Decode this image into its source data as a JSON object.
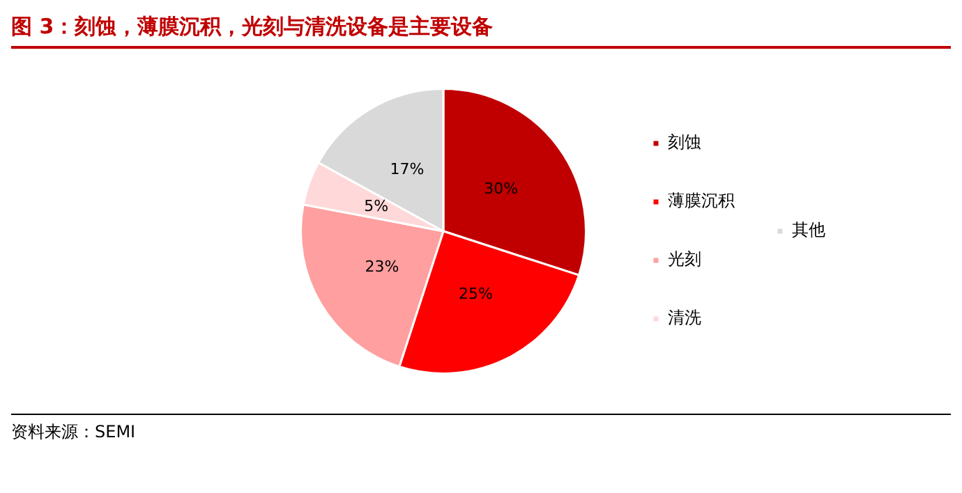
{
  "chart_data": {
    "type": "pie",
    "title": "图 3：刻蚀，薄膜沉积，光刻与清洗设备是主要设备",
    "categories": [
      "刻蚀",
      "薄膜沉积",
      "光刻",
      "清洗",
      "其他"
    ],
    "values": [
      30,
      25,
      23,
      5,
      17
    ],
    "colors": [
      "#c00000",
      "#ff0000",
      "#ff9f9f",
      "#ffd9d9",
      "#d9d9d9"
    ],
    "value_labels": [
      "30%",
      "25%",
      "23%",
      "5%",
      "17%"
    ],
    "legend": "right",
    "annotations": [
      "资料来源：SEMI"
    ]
  }
}
